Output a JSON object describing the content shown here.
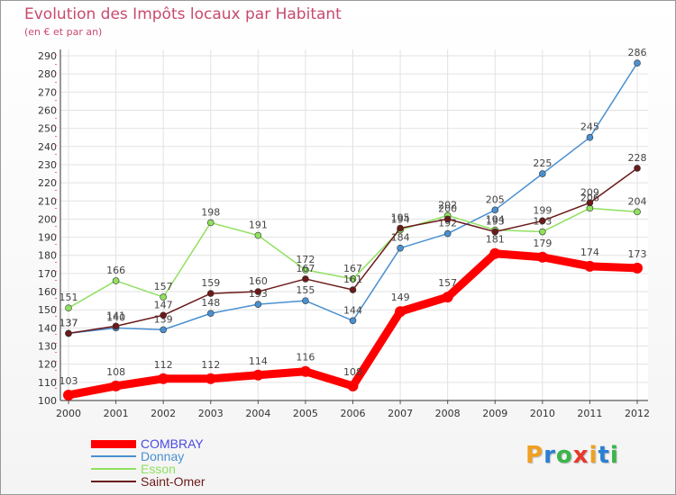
{
  "title": "Evolution des Impôts locaux par Habitant",
  "subtitle": "(en € et par an)",
  "logo": {
    "letters": [
      "P",
      "r",
      "o",
      "x",
      "i",
      "t",
      "i"
    ],
    "colors": [
      "#f0a020",
      "#2a7fd4",
      "#39b54a",
      "#e8382c",
      "#f0a020",
      "#2a7fd4",
      "#39b54a"
    ]
  },
  "chart_data": {
    "type": "line",
    "title": "Evolution des Impôts locaux par Habitant",
    "subtitle": "(en € et par an)",
    "xlabel": "",
    "ylabel": "",
    "x": [
      "2000",
      "2001",
      "2002",
      "2003",
      "2004",
      "2005",
      "2006",
      "2007",
      "2008",
      "2009",
      "2010",
      "2011",
      "2012"
    ],
    "ylim": [
      100,
      290
    ],
    "yticks": [
      100,
      110,
      120,
      130,
      140,
      150,
      160,
      170,
      180,
      190,
      200,
      210,
      220,
      230,
      240,
      250,
      260,
      270,
      280,
      290
    ],
    "grid": true,
    "legend": "bottom-left",
    "series": [
      {
        "name": "COMBRAY",
        "color": "#ff0000",
        "legend_color": "#4a4ae0",
        "emphasis": true,
        "values": [
          103,
          108,
          112,
          112,
          114,
          116,
          108,
          149,
          157,
          181,
          179,
          174,
          173
        ]
      },
      {
        "name": "Donnay",
        "color": "#4a90d0",
        "legend_color": "#4a90d0",
        "values": [
          137,
          140,
          139,
          148,
          153,
          155,
          144,
          184,
          192,
          205,
          225,
          245,
          286
        ]
      },
      {
        "name": "Esson",
        "color": "#90e060",
        "legend_color": "#90e060",
        "values": [
          151,
          166,
          157,
          198,
          191,
          172,
          167,
          194,
          202,
          194,
          193,
          206,
          204
        ]
      },
      {
        "name": "Saint-Omer",
        "color": "#6b1a1a",
        "legend_color": "#6b1a1a",
        "values": [
          137,
          141,
          147,
          159,
          160,
          167,
          161,
          195,
          200,
          193,
          199,
          209,
          228
        ]
      }
    ]
  }
}
